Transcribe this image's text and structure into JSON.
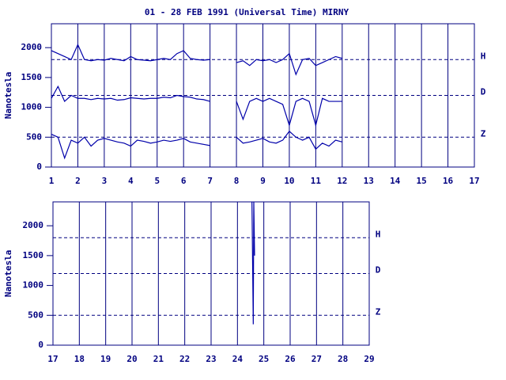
{
  "chart_data": [
    {
      "type": "line",
      "title": "01 - 28 FEB 1991 (Universal Time) MIRNY",
      "y_label": "Nanotesla",
      "xlim": [
        1,
        17
      ],
      "xticks": [
        1,
        2,
        3,
        4,
        5,
        6,
        7,
        8,
        9,
        10,
        11,
        12,
        13,
        14,
        15,
        16,
        17
      ],
      "ylim": [
        0,
        2400
      ],
      "yticks": [
        0,
        500,
        1000,
        1500,
        2000
      ],
      "grid": true,
      "reference_lines": [
        {
          "value": 1800,
          "label": "H"
        },
        {
          "value": 1200,
          "label": "D"
        },
        {
          "value": 500,
          "label": "Z"
        }
      ],
      "x": [
        1,
        1.25,
        1.5,
        1.75,
        2,
        2.25,
        2.5,
        2.75,
        3,
        3.25,
        3.5,
        3.75,
        4,
        4.25,
        4.5,
        4.75,
        5,
        5.25,
        5.5,
        5.75,
        6,
        6.25,
        6.5,
        6.75,
        7,
        7.5,
        8,
        8.25,
        8.5,
        8.75,
        9,
        9.25,
        9.5,
        9.75,
        10,
        10.25,
        10.5,
        10.75,
        11,
        11.25,
        11.5,
        11.75,
        12
      ],
      "series": [
        {
          "color": "#0000aa",
          "values": [
            1950,
            1900,
            1850,
            1800,
            2050,
            1800,
            1780,
            1800,
            1790,
            1820,
            1800,
            1780,
            1850,
            1800,
            1790,
            1780,
            1800,
            1820,
            1800,
            1900,
            1950,
            1820,
            1800,
            1790,
            1800,
            null,
            1750,
            1780,
            1700,
            1800,
            1780,
            1800,
            1750,
            1800,
            1900,
            1550,
            1800,
            1820,
            1700,
            1750,
            1800,
            1850,
            1820
          ]
        },
        {
          "color": "#0000aa",
          "values": [
            1150,
            1350,
            1100,
            1200,
            1150,
            1150,
            1130,
            1150,
            1140,
            1150,
            1120,
            1130,
            1160,
            1150,
            1140,
            1150,
            1150,
            1170,
            1160,
            1200,
            1180,
            1170,
            1140,
            1130,
            1100,
            null,
            1100,
            800,
            1100,
            1150,
            1100,
            1150,
            1100,
            1050,
            700,
            1100,
            1150,
            1100,
            700,
            1150,
            1100,
            1100,
            1100
          ]
        },
        {
          "color": "#0000aa",
          "values": [
            550,
            500,
            150,
            450,
            400,
            500,
            350,
            450,
            480,
            450,
            420,
            400,
            350,
            450,
            430,
            400,
            420,
            450,
            430,
            450,
            480,
            420,
            400,
            380,
            360,
            null,
            500,
            400,
            420,
            450,
            480,
            420,
            400,
            450,
            600,
            500,
            450,
            500,
            300,
            400,
            350,
            450,
            420
          ]
        }
      ]
    },
    {
      "type": "line",
      "y_label": "Nanotesla",
      "xlim": [
        17,
        29
      ],
      "xticks": [
        17,
        18,
        19,
        20,
        21,
        22,
        23,
        24,
        25,
        26,
        27,
        28,
        29
      ],
      "ylim": [
        0,
        2400
      ],
      "yticks": [
        0,
        500,
        1000,
        1500,
        2000
      ],
      "grid": true,
      "reference_lines": [
        {
          "value": 1800,
          "label": "H"
        },
        {
          "value": 1200,
          "label": "D"
        },
        {
          "value": 500,
          "label": "Z"
        }
      ],
      "x": [
        24.55,
        24.6,
        24.62,
        24.65
      ],
      "series": [
        {
          "color": "#0000aa",
          "values": [
            2400,
            350,
            2400,
            1500
          ]
        }
      ]
    }
  ]
}
